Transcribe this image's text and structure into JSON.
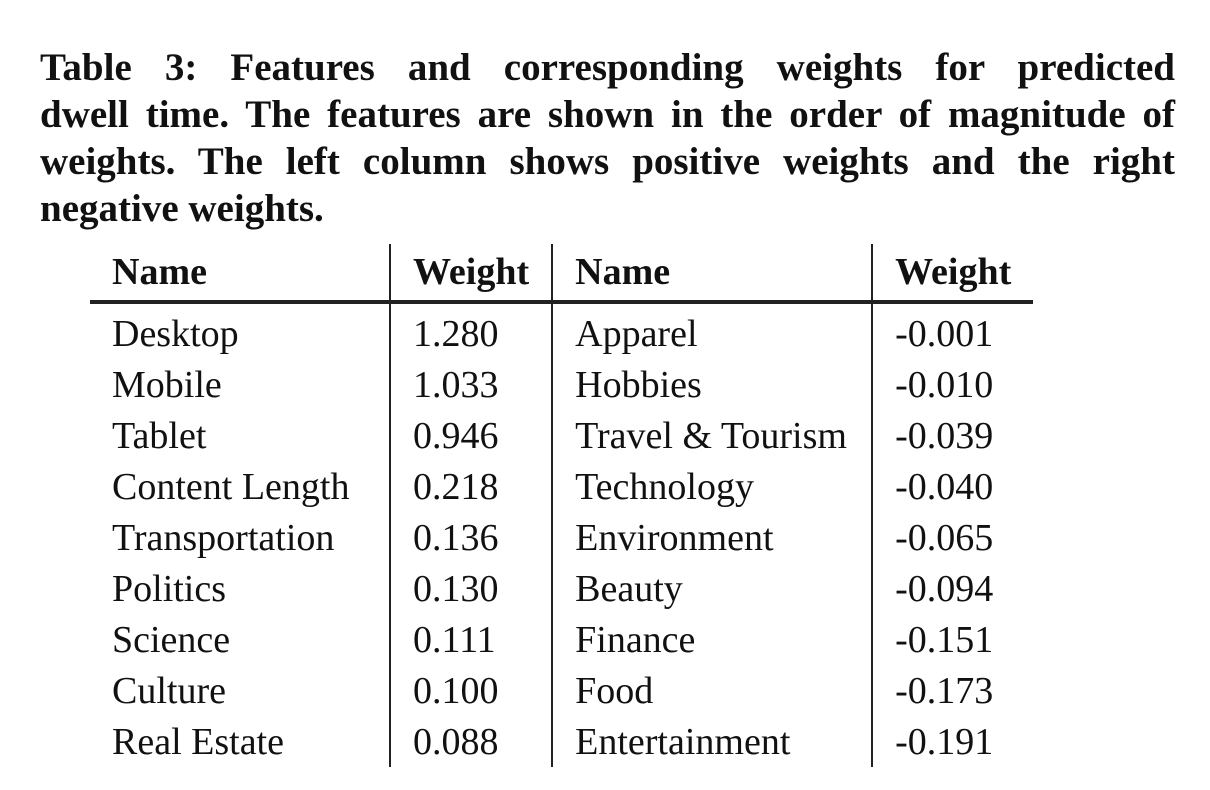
{
  "caption": {
    "lines": [
      "Table 3:  Features and corresponding weights for predicted",
      "dwell time. The features are shown in the order of magnitude of",
      "weights.  The left column shows positive weights and the right",
      "negative weights."
    ]
  },
  "table": {
    "headers": [
      "Name",
      "Weight",
      "Name",
      "Weight"
    ],
    "rows": [
      [
        "Desktop",
        "1.280",
        "Apparel",
        "-0.001"
      ],
      [
        "Mobile",
        "1.033",
        "Hobbies",
        "-0.010"
      ],
      [
        "Tablet",
        "0.946",
        "Travel & Tourism",
        "-0.039"
      ],
      [
        "Content Length",
        "0.218",
        "Technology",
        "-0.040"
      ],
      [
        "Transportation",
        "0.136",
        "Environment",
        "-0.065"
      ],
      [
        "Politics",
        "0.130",
        "Beauty",
        "-0.094"
      ],
      [
        "Science",
        "0.111",
        "Finance",
        "-0.151"
      ],
      [
        "Culture",
        "0.100",
        "Food",
        "-0.173"
      ],
      [
        "Real Estate",
        "0.088",
        "Entertainment",
        "-0.191"
      ]
    ]
  }
}
